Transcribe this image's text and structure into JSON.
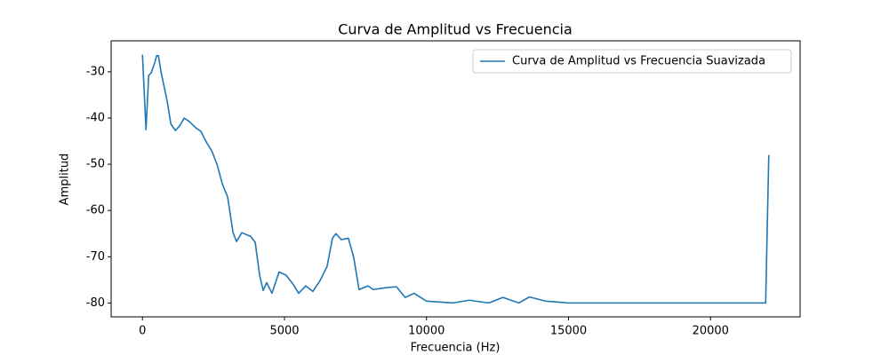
{
  "chart_data": {
    "type": "line",
    "title": "Curva de Amplitud vs Frecuencia",
    "xlabel": "Frecuencia (Hz)",
    "ylabel": "Amplitud",
    "x": [
      0,
      125,
      220,
      310,
      440,
      500,
      560,
      660,
      780,
      875,
      1000,
      1160,
      1310,
      1470,
      1660,
      1875,
      2060,
      2250,
      2440,
      2625,
      2810,
      3000,
      3190,
      3310,
      3500,
      3810,
      3970,
      4125,
      4250,
      4375,
      4560,
      4810,
      5060,
      5310,
      5500,
      5750,
      6000,
      6250,
      6500,
      6690,
      6810,
      7000,
      7250,
      7440,
      7625,
      7940,
      8125,
      8560,
      8940,
      9250,
      9560,
      10000,
      10940,
      11500,
      12190,
      12690,
      13250,
      13625,
      14190,
      15000,
      21940,
      22050
    ],
    "series": [
      {
        "name": "Curva de Amplitud vs Frecuencia Suavizada",
        "color": "#1f77b4",
        "values": [
          -26.3,
          -42.5,
          -30.8,
          -30.2,
          -27.9,
          -26.5,
          -26.5,
          -30.2,
          -33.7,
          -36.5,
          -41.3,
          -42.7,
          -41.7,
          -40,
          -40.8,
          -42.1,
          -42.9,
          -45.2,
          -47.1,
          -50,
          -54.2,
          -57.1,
          -64.8,
          -66.7,
          -64.8,
          -65.6,
          -66.9,
          -74,
          -77.3,
          -75.6,
          -77.9,
          -73.3,
          -74,
          -76,
          -77.9,
          -76.3,
          -77.5,
          -75.2,
          -72.1,
          -66,
          -65,
          -66.3,
          -66,
          -70.2,
          -77.1,
          -76.3,
          -77.1,
          -76.7,
          -76.5,
          -78.8,
          -77.9,
          -79.6,
          -80,
          -79.4,
          -80,
          -78.8,
          -80,
          -78.7,
          -79.6,
          -80,
          -80,
          -48
        ]
      }
    ],
    "xlim": [
      -1102.5,
      23152.5
    ],
    "ylim": [
      -83,
      -23.3
    ],
    "xticks": [
      0,
      5000,
      10000,
      15000,
      20000
    ],
    "yticks": [
      -30,
      -40,
      -50,
      -60,
      -70,
      -80
    ],
    "legend": "upper right",
    "grid": false
  }
}
